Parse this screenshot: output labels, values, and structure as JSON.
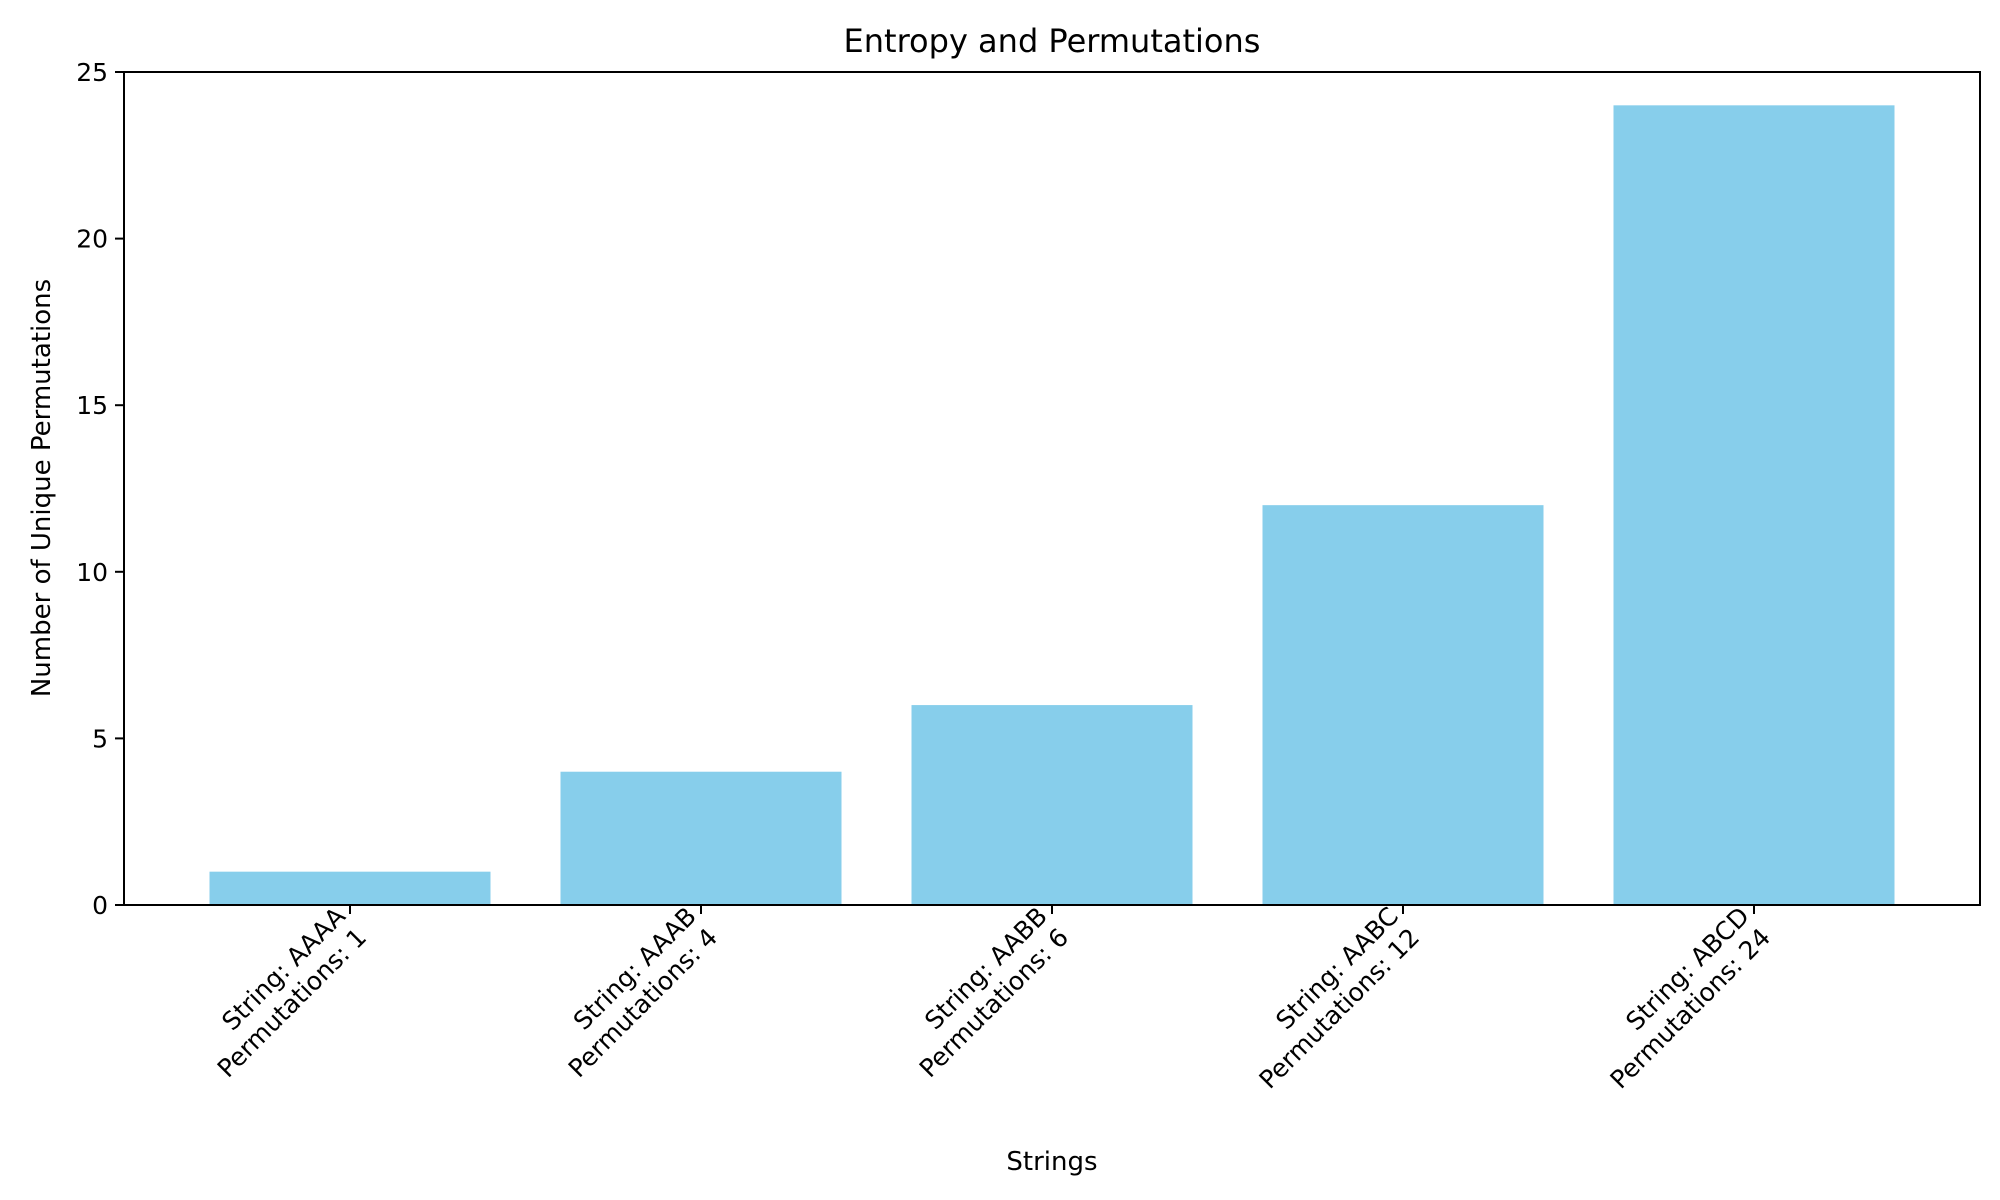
{
  "chart_data": {
    "type": "bar",
    "title": "Entropy and Permutations",
    "xlabel": "Strings",
    "ylabel": "Number of Unique Permutations",
    "categories": [
      [
        "String: AAAA",
        "Permutations: 1"
      ],
      [
        "String: AAAB",
        "Permutations: 4"
      ],
      [
        "String: AABB",
        "Permutations: 6"
      ],
      [
        "String: AABC",
        "Permutations: 12"
      ],
      [
        "String: ABCD",
        "Permutations: 24"
      ]
    ],
    "values": [
      1,
      4,
      6,
      12,
      24
    ],
    "ylim": [
      0,
      25
    ],
    "yticks": [
      0,
      5,
      10,
      15,
      20,
      25
    ],
    "xtick_rotation_deg": 45,
    "grid": false,
    "legend": null,
    "colors": {
      "bar": "#87CEEB",
      "axis": "#000000",
      "background": "#ffffff"
    }
  }
}
